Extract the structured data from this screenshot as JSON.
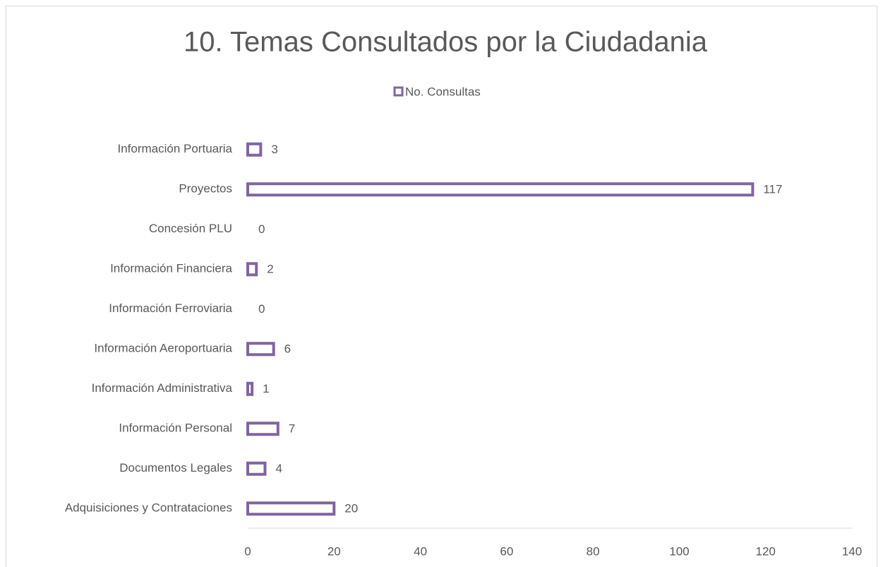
{
  "chart_data": {
    "type": "bar",
    "orientation": "horizontal",
    "title": "10. Temas Consultados por la Ciudadania",
    "categories": [
      "Información Portuaria",
      "Proyectos",
      "Concesión PLU",
      "Información Financiera",
      "Información Ferroviaria",
      "Información Aeroportuaria",
      "Información Administrativa",
      "Información Personal",
      "Documentos Legales",
      "Adquisiciones y Contrataciones"
    ],
    "series": [
      {
        "name": "No. Consultas",
        "color": "#8064a2",
        "values": [
          3,
          117,
          0,
          2,
          0,
          6,
          1,
          7,
          4,
          20
        ]
      }
    ],
    "xlim": [
      0,
      140
    ],
    "xticks": [
      0,
      20,
      40,
      60,
      80,
      100,
      120,
      140
    ],
    "grid": false,
    "legend": "top"
  }
}
